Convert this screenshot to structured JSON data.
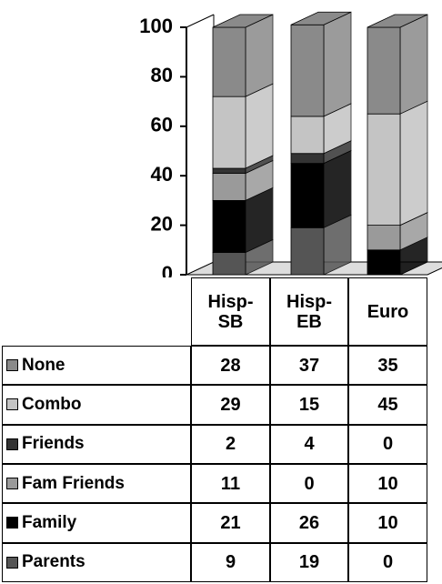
{
  "chart_data": {
    "type": "bar",
    "stacked": true,
    "categories": [
      "Hisp-SB",
      "Hisp-EB",
      "Euro"
    ],
    "series": [
      {
        "name": "Parents",
        "color": "#555555",
        "values": [
          9,
          19,
          0
        ]
      },
      {
        "name": "Family",
        "color": "#000000",
        "values": [
          21,
          26,
          10
        ]
      },
      {
        "name": "Fam Friends",
        "color": "#9a9a9a",
        "values": [
          11,
          0,
          10
        ]
      },
      {
        "name": "Friends",
        "color": "#333333",
        "values": [
          2,
          4,
          0
        ]
      },
      {
        "name": "Combo",
        "color": "#c4c4c4",
        "values": [
          29,
          15,
          45
        ]
      },
      {
        "name": "None",
        "color": "#8a8a8a",
        "values": [
          28,
          37,
          35
        ]
      }
    ],
    "ylim": [
      0,
      100
    ],
    "yticks": [
      0,
      20,
      40,
      60,
      80,
      100
    ]
  }
}
